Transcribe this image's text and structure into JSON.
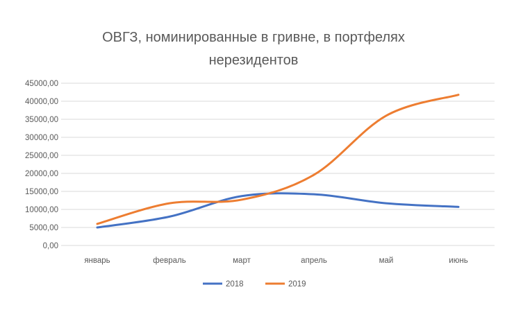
{
  "chart_data": {
    "type": "line",
    "title_lines": [
      "ОВГЗ, номинированные в гривне, в портфелях",
      "нерезидентов"
    ],
    "categories": [
      "январь",
      "февраль",
      "март",
      "апрель",
      "май",
      "июнь"
    ],
    "ylim": [
      0,
      45000
    ],
    "yticks": [
      "0,00",
      "5000,00",
      "10000,00",
      "15000,00",
      "20000,00",
      "25000,00",
      "30000,00",
      "35000,00",
      "40000,00",
      "45000,00"
    ],
    "grid": true,
    "legend_position": "bottom",
    "series": [
      {
        "name": "2018",
        "color": "#4472C4",
        "values": [
          5000,
          8000,
          13700,
          14200,
          11700,
          10700
        ]
      },
      {
        "name": "2019",
        "color": "#ED7D31",
        "values": [
          6000,
          11700,
          12700,
          19600,
          36000,
          41800
        ]
      }
    ]
  }
}
